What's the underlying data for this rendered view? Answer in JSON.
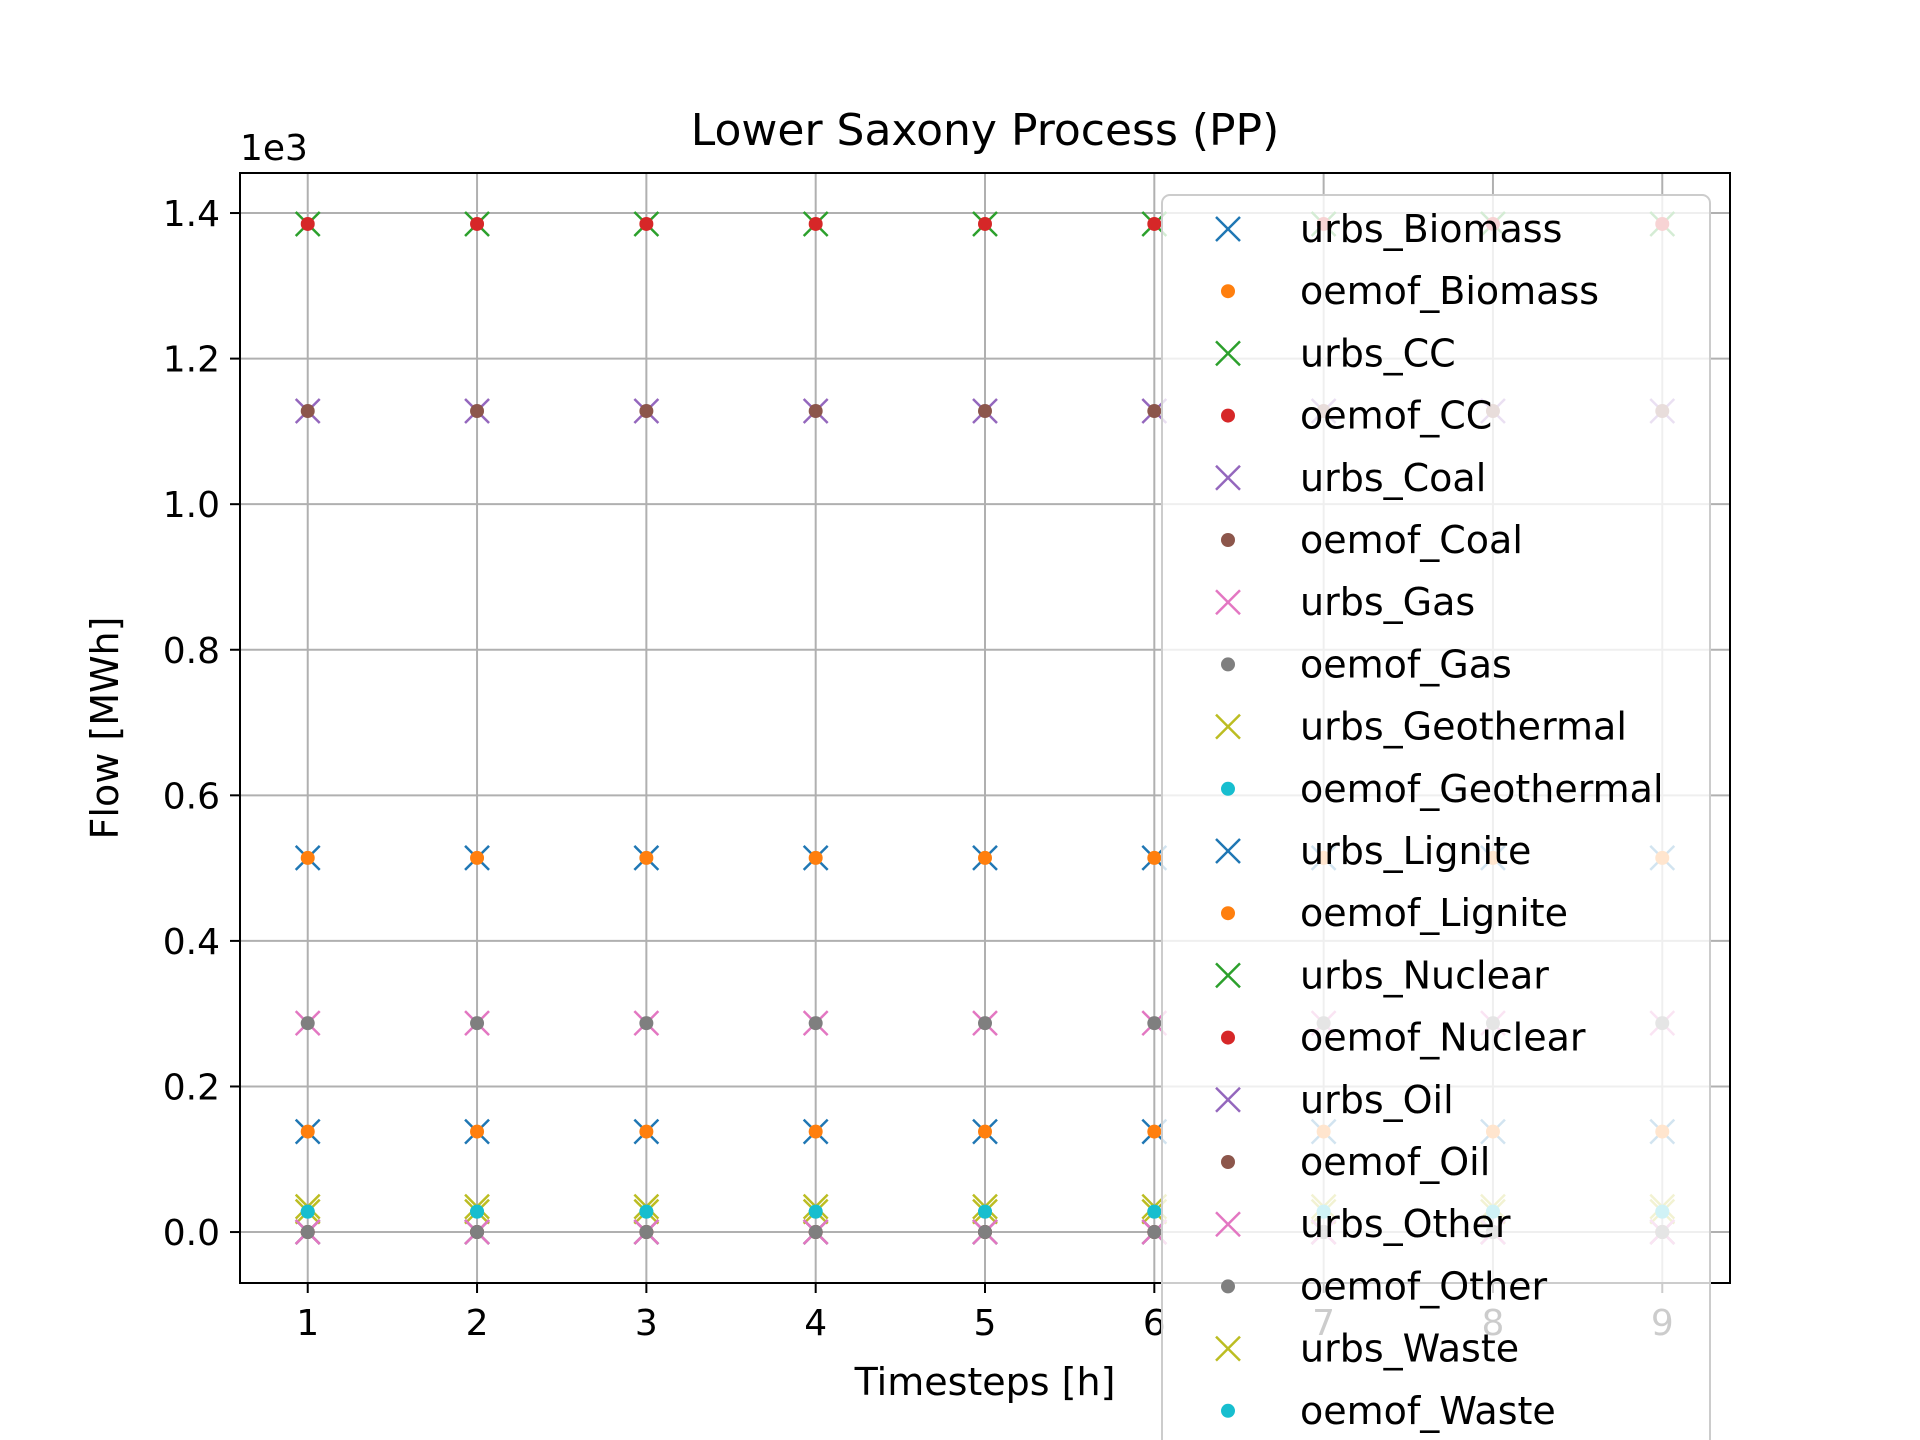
{
  "chart_data": {
    "type": "scatter",
    "title": "Lower Saxony Process (PP)",
    "xlabel": "Timesteps [h]",
    "ylabel": "Flow [MWh]",
    "y_offset_text": "1e3",
    "y_scale_factor": 1000,
    "xlim": [
      0.6,
      9.4
    ],
    "ylim": [
      -70,
      1455
    ],
    "grid": true,
    "legend_position": "right, overlapping plot area",
    "x": [
      1,
      2,
      3,
      4,
      5,
      6,
      7,
      8,
      9
    ],
    "x_ticks": [
      1,
      2,
      3,
      4,
      5,
      6,
      7,
      8,
      9
    ],
    "y_ticks": [
      0,
      200,
      400,
      600,
      800,
      1000,
      1200,
      1400
    ],
    "y_tick_labels": [
      "0.0",
      "0.2",
      "0.4",
      "0.6",
      "0.8",
      "1.0",
      "1.2",
      "1.4"
    ],
    "series": [
      {
        "name": "urbs_Biomass",
        "marker": "x",
        "color": "#1f77b4",
        "values": [
          514,
          514,
          514,
          514,
          514,
          514,
          514,
          514,
          514
        ]
      },
      {
        "name": "oemof_Biomass",
        "marker": "o",
        "color": "#ff7f0e",
        "values": [
          514,
          514,
          514,
          514,
          514,
          514,
          514,
          514,
          514
        ]
      },
      {
        "name": "urbs_CC",
        "marker": "x",
        "color": "#2ca02c",
        "values": [
          1385,
          1385,
          1385,
          1385,
          1385,
          1385,
          1385,
          1385,
          1385
        ]
      },
      {
        "name": "oemof_CC",
        "marker": "o",
        "color": "#d62728",
        "values": [
          1385,
          1385,
          1385,
          1385,
          1385,
          1385,
          1385,
          1385,
          1385
        ]
      },
      {
        "name": "urbs_Coal",
        "marker": "x",
        "color": "#9467bd",
        "values": [
          1128,
          1128,
          1128,
          1128,
          1128,
          1128,
          1128,
          1128,
          1128
        ]
      },
      {
        "name": "oemof_Coal",
        "marker": "o",
        "color": "#8c564b",
        "values": [
          1128,
          1128,
          1128,
          1128,
          1128,
          1128,
          1128,
          1128,
          1128
        ]
      },
      {
        "name": "urbs_Gas",
        "marker": "x",
        "color": "#e377c2",
        "values": [
          287,
          287,
          287,
          287,
          287,
          287,
          287,
          287,
          287
        ]
      },
      {
        "name": "oemof_Gas",
        "marker": "o",
        "color": "#7f7f7f",
        "values": [
          287,
          287,
          287,
          287,
          287,
          287,
          287,
          287,
          287
        ]
      },
      {
        "name": "urbs_Geothermal",
        "marker": "x",
        "color": "#bcbd22",
        "values": [
          28,
          28,
          28,
          28,
          28,
          28,
          28,
          28,
          28
        ]
      },
      {
        "name": "oemof_Geothermal",
        "marker": "o",
        "color": "#17becf",
        "values": [
          28,
          28,
          28,
          28,
          28,
          28,
          28,
          28,
          28
        ]
      },
      {
        "name": "urbs_Lignite",
        "marker": "x",
        "color": "#1f77b4",
        "values": [
          138,
          138,
          138,
          138,
          138,
          138,
          138,
          138,
          138
        ]
      },
      {
        "name": "oemof_Lignite",
        "marker": "o",
        "color": "#ff7f0e",
        "values": [
          138,
          138,
          138,
          138,
          138,
          138,
          138,
          138,
          138
        ]
      },
      {
        "name": "urbs_Nuclear",
        "marker": "x",
        "color": "#2ca02c",
        "values": [
          0,
          0,
          0,
          0,
          0,
          0,
          0,
          0,
          0
        ]
      },
      {
        "name": "oemof_Nuclear",
        "marker": "o",
        "color": "#d62728",
        "values": [
          0,
          0,
          0,
          0,
          0,
          0,
          0,
          0,
          0
        ]
      },
      {
        "name": "urbs_Oil",
        "marker": "x",
        "color": "#9467bd",
        "values": [
          0,
          0,
          0,
          0,
          0,
          0,
          0,
          0,
          0
        ]
      },
      {
        "name": "oemof_Oil",
        "marker": "o",
        "color": "#8c564b",
        "values": [
          0,
          0,
          0,
          0,
          0,
          0,
          0,
          0,
          0
        ]
      },
      {
        "name": "urbs_Other",
        "marker": "x",
        "color": "#e377c2",
        "values": [
          0,
          0,
          0,
          0,
          0,
          0,
          0,
          0,
          0
        ]
      },
      {
        "name": "oemof_Other",
        "marker": "o",
        "color": "#7f7f7f",
        "values": [
          0,
          0,
          0,
          0,
          0,
          0,
          0,
          0,
          0
        ]
      },
      {
        "name": "urbs_Waste",
        "marker": "x",
        "color": "#bcbd22",
        "values": [
          35,
          35,
          35,
          35,
          35,
          35,
          35,
          35,
          35
        ]
      },
      {
        "name": "oemof_Waste",
        "marker": "o",
        "color": "#17becf",
        "values": [
          28,
          28,
          28,
          28,
          28,
          28,
          28,
          28,
          28
        ]
      }
    ]
  }
}
